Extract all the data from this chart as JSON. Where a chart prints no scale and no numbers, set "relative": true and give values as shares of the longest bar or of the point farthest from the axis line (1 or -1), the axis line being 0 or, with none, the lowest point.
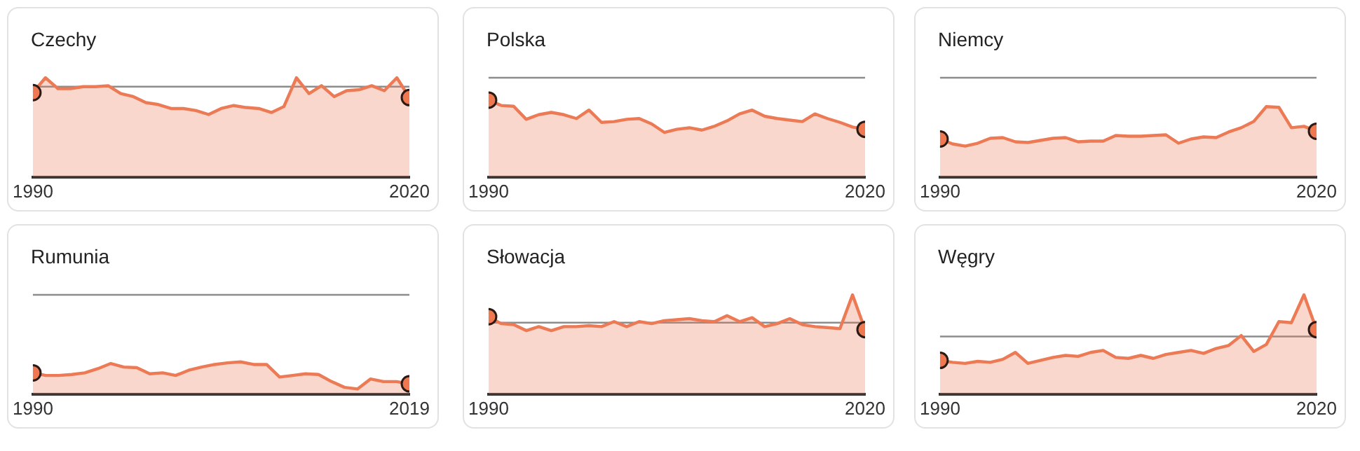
{
  "chart_data": [
    {
      "type": "area",
      "title": "Czechy",
      "relative": true,
      "xlim": [
        1990,
        2020
      ],
      "xticks": [
        1990,
        2020
      ],
      "grid": false,
      "legend": false,
      "ref_lines": [
        {
          "axis": "y",
          "value": 0.91,
          "color": "#8c8c8c"
        }
      ],
      "series": [
        {
          "color": "#ec7a55",
          "x": [
            1990,
            1991,
            1992,
            1993,
            1994,
            1995,
            1996,
            1997,
            1998,
            1999,
            2000,
            2001,
            2002,
            2003,
            2004,
            2005,
            2006,
            2007,
            2008,
            2009,
            2010,
            2011,
            2012,
            2013,
            2014,
            2015,
            2016,
            2017,
            2018,
            2019,
            2020
          ],
          "values": [
            0.85,
            1,
            0.89,
            0.89,
            0.91,
            0.91,
            0.92,
            0.84,
            0.81,
            0.75,
            0.73,
            0.69,
            0.69,
            0.67,
            0.63,
            0.69,
            0.72,
            0.7,
            0.69,
            0.65,
            0.71,
            1,
            0.84,
            0.92,
            0.81,
            0.87,
            0.88,
            0.92,
            0.87,
            1,
            0.8
          ]
        },
        {
          "type": "scatter",
          "marker": "circle",
          "color": "#f07850",
          "x": [
            1990,
            2020
          ],
          "values": [
            0.85,
            0.8
          ]
        }
      ]
    },
    {
      "type": "area",
      "title": "Polska",
      "relative": true,
      "xlim": [
        1990,
        2020
      ],
      "xticks": [
        1990,
        2020
      ],
      "grid": false,
      "legend": false,
      "ref_lines": [
        {
          "axis": "y",
          "value": 1.29,
          "color": "#8c8c8c"
        }
      ],
      "series": [
        {
          "color": "#ec7a55",
          "x": [
            1990,
            1991,
            1992,
            1993,
            1994,
            1995,
            1996,
            1997,
            1998,
            1999,
            2000,
            2001,
            2002,
            2003,
            2004,
            2005,
            2006,
            2007,
            2008,
            2009,
            2010,
            2011,
            2012,
            2013,
            2014,
            2015,
            2016,
            2017,
            2018,
            2019,
            2020
          ],
          "values": [
            1,
            0.93,
            0.92,
            0.75,
            0.81,
            0.84,
            0.81,
            0.76,
            0.87,
            0.71,
            0.72,
            0.75,
            0.76,
            0.69,
            0.58,
            0.62,
            0.64,
            0.61,
            0.66,
            0.73,
            0.82,
            0.87,
            0.79,
            0.76,
            0.74,
            0.72,
            0.82,
            0.76,
            0.71,
            0.65,
            0.62
          ]
        },
        {
          "type": "scatter",
          "marker": "circle",
          "color": "#f07850",
          "x": [
            1990,
            2020
          ],
          "values": [
            1,
            0.62
          ]
        }
      ]
    },
    {
      "type": "area",
      "title": "Niemcy",
      "relative": true,
      "xlim": [
        1990,
        2020
      ],
      "xticks": [
        1990,
        2020
      ],
      "grid": false,
      "legend": false,
      "ref_lines": [
        {
          "axis": "y",
          "value": 1.41,
          "color": "#8c8c8c"
        }
      ],
      "series": [
        {
          "color": "#ec7a55",
          "x": [
            1990,
            1991,
            1992,
            1993,
            1994,
            1995,
            1996,
            1997,
            1998,
            1999,
            2000,
            2001,
            2002,
            2003,
            2004,
            2005,
            2006,
            2007,
            2008,
            2009,
            2010,
            2011,
            2012,
            2013,
            2014,
            2015,
            2016,
            2017,
            2018,
            2019,
            2020
          ],
          "values": [
            0.54,
            0.47,
            0.44,
            0.48,
            0.55,
            0.56,
            0.5,
            0.49,
            0.52,
            0.55,
            0.56,
            0.5,
            0.51,
            0.51,
            0.59,
            0.58,
            0.58,
            0.59,
            0.6,
            0.48,
            0.54,
            0.57,
            0.56,
            0.64,
            0.7,
            0.79,
            1,
            0.99,
            0.7,
            0.72,
            0.65
          ]
        },
        {
          "type": "scatter",
          "marker": "circle",
          "color": "#f07850",
          "x": [
            1990,
            2020
          ],
          "values": [
            0.54,
            0.65
          ]
        }
      ]
    },
    {
      "type": "area",
      "title": "Rumunia",
      "relative": true,
      "xlim": [
        1990,
        2019
      ],
      "xticks": [
        1990,
        2019
      ],
      "grid": false,
      "legend": false,
      "ref_lines": [
        {
          "axis": "y",
          "value": 3.08,
          "color": "#8c8c8c"
        }
      ],
      "series": [
        {
          "color": "#ec7a55",
          "x": [
            1990,
            1991,
            1992,
            1993,
            1994,
            1995,
            1996,
            1997,
            1998,
            1999,
            2000,
            2001,
            2002,
            2003,
            2004,
            2005,
            2006,
            2007,
            2008,
            2009,
            2010,
            2011,
            2012,
            2013,
            2014,
            2015,
            2016,
            2017,
            2018,
            2019
          ],
          "values": [
            0.66,
            0.58,
            0.58,
            0.61,
            0.66,
            0.79,
            0.95,
            0.84,
            0.82,
            0.63,
            0.66,
            0.58,
            0.74,
            0.84,
            0.92,
            0.97,
            1,
            0.92,
            0.92,
            0.53,
            0.58,
            0.63,
            0.61,
            0.39,
            0.21,
            0.16,
            0.47,
            0.39,
            0.39,
            0.32
          ]
        },
        {
          "type": "scatter",
          "marker": "circle",
          "color": "#f07850",
          "x": [
            1990,
            2019
          ],
          "values": [
            0.66,
            0.32
          ]
        }
      ]
    },
    {
      "type": "area",
      "title": "Słowacja",
      "relative": true,
      "xlim": [
        1990,
        2020
      ],
      "xticks": [
        1990,
        2020
      ],
      "grid": false,
      "legend": false,
      "ref_lines": [
        {
          "axis": "y",
          "value": 0.72,
          "color": "#8c8c8c"
        }
      ],
      "series": [
        {
          "color": "#ec7a55",
          "x": [
            1990,
            1991,
            1992,
            1993,
            1994,
            1995,
            1996,
            1997,
            1998,
            1999,
            2000,
            2001,
            2002,
            2003,
            2004,
            2005,
            2006,
            2007,
            2008,
            2009,
            2010,
            2011,
            2012,
            2013,
            2014,
            2015,
            2016,
            2017,
            2018,
            2019,
            2020
          ],
          "values": [
            0.78,
            0.71,
            0.7,
            0.64,
            0.68,
            0.64,
            0.68,
            0.68,
            0.69,
            0.68,
            0.73,
            0.68,
            0.73,
            0.71,
            0.74,
            0.75,
            0.76,
            0.74,
            0.73,
            0.79,
            0.73,
            0.77,
            0.68,
            0.71,
            0.76,
            0.7,
            0.68,
            0.67,
            0.66,
            1,
            0.65
          ]
        },
        {
          "type": "scatter",
          "marker": "circle",
          "color": "#f07850",
          "x": [
            1990,
            2020
          ],
          "values": [
            0.78,
            0.65
          ]
        }
      ]
    },
    {
      "type": "area",
      "title": "Węgry",
      "relative": true,
      "xlim": [
        1990,
        2020
      ],
      "xticks": [
        1990,
        2020
      ],
      "grid": false,
      "legend": false,
      "ref_lines": [
        {
          "axis": "y",
          "value": 0.58,
          "color": "#8c8c8c"
        }
      ],
      "series": [
        {
          "color": "#ec7a55",
          "x": [
            1990,
            1991,
            1992,
            1993,
            1994,
            1995,
            1996,
            1997,
            1998,
            1999,
            2000,
            2001,
            2002,
            2003,
            2004,
            2005,
            2006,
            2007,
            2008,
            2009,
            2010,
            2011,
            2012,
            2013,
            2014,
            2015,
            2016,
            2017,
            2018,
            2019,
            2020
          ],
          "values": [
            0.34,
            0.32,
            0.31,
            0.33,
            0.32,
            0.35,
            0.42,
            0.31,
            0.34,
            0.37,
            0.39,
            0.38,
            0.42,
            0.44,
            0.37,
            0.36,
            0.39,
            0.36,
            0.4,
            0.42,
            0.44,
            0.41,
            0.46,
            0.49,
            0.59,
            0.43,
            0.5,
            0.73,
            0.72,
            1,
            0.65
          ]
        },
        {
          "type": "scatter",
          "marker": "circle",
          "color": "#f07850",
          "x": [
            1990,
            2020
          ],
          "values": [
            0.34,
            0.65
          ]
        }
      ]
    }
  ]
}
